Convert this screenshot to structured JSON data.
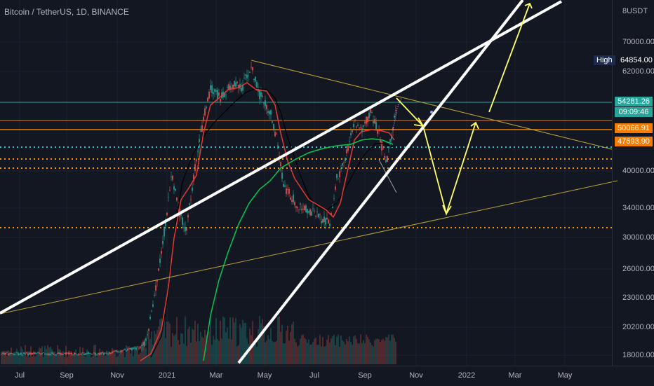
{
  "symbol_title": "Bitcoin / TetherUS, 1D, BINANCE",
  "axis_header": "USDT",
  "axis_header_prefix": "8",
  "price_ticks": [
    "70000.00",
    "62000.00",
    "40000.00",
    "34000.00",
    "30000.00",
    "26000.00",
    "23000.00",
    "20200.00",
    "18000.00"
  ],
  "time_ticks": [
    "Jul",
    "Sep",
    "Nov",
    "2021",
    "Mar",
    "May",
    "Jul",
    "Sep",
    "Nov",
    "2022",
    "Mar",
    "May"
  ],
  "high": {
    "label": "High",
    "value": "64854.00"
  },
  "price_tags": [
    {
      "value": "54281.26",
      "color": "#26a69a"
    },
    {
      "value": "09:09:46",
      "color": "#26a69a"
    },
    {
      "value": "50066.91",
      "color": "#f57c00"
    },
    {
      "value": "47693.90",
      "color": "#f57c00"
    }
  ],
  "colors": {
    "background": "#131722",
    "trendline": "#ffffff",
    "projection": "#ffff66",
    "support": "#ff9800",
    "ma_red": "#e53935",
    "ma_green": "#00c853",
    "ma_black": "#000000",
    "teal_line": "#26a69a"
  }
}
